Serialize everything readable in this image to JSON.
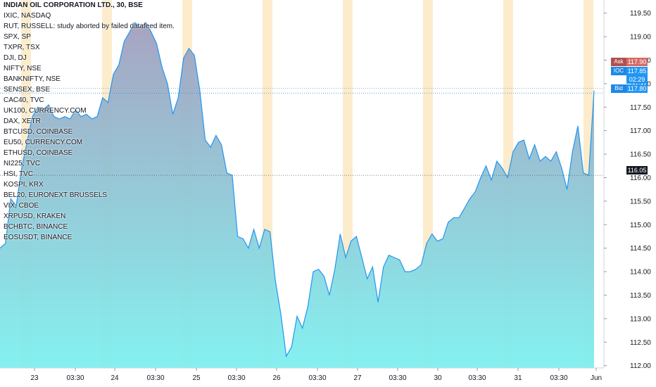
{
  "chart_data": {
    "type": "area",
    "title": "INDIAN OIL CORPORATION LTD., 30, BSE",
    "y_axis": {
      "ticks": [
        "119.50",
        "119.00",
        "118.50",
        "118.00",
        "117.50",
        "117.00",
        "116.50",
        "116.00",
        "115.50",
        "115.00",
        "114.50",
        "114.00",
        "113.50",
        "113.00",
        "112.50",
        "112.00"
      ],
      "range": [
        111.95,
        119.78
      ],
      "side": "right"
    },
    "x_axis": {
      "ticks": [
        "23",
        "03:30",
        "24",
        "03:30",
        "25",
        "03:30",
        "26",
        "03:30",
        "27",
        "03:30",
        "30",
        "03:30",
        "31",
        "03:30",
        "Jun"
      ]
    },
    "series": [
      {
        "values": [
          114.5,
          114.6,
          115.55,
          115.4,
          116.2,
          116.75,
          117.3,
          117.5,
          117.45,
          117.55,
          117.3,
          117.25,
          117.3,
          117.25,
          117.45,
          117.3,
          117.35,
          117.25,
          117.3,
          117.7,
          117.6,
          118.2,
          118.4,
          118.9,
          119.1,
          119.3,
          119.2,
          119.3,
          119.1,
          118.85,
          118.35,
          118.0,
          117.35,
          117.7,
          118.55,
          118.75,
          118.6,
          117.85,
          116.8,
          116.65,
          116.9,
          116.7,
          116.1,
          116.05,
          114.75,
          114.7,
          114.5,
          114.9,
          114.5,
          114.9,
          114.85,
          113.8,
          113.1,
          112.2,
          112.4,
          113.05,
          112.8,
          113.25,
          114.0,
          114.05,
          113.9,
          113.5,
          114.05,
          114.8,
          114.3,
          114.65,
          114.75,
          114.3,
          113.85,
          114.1,
          113.35,
          114.1,
          114.35,
          114.3,
          114.25,
          114.0,
          114.0,
          114.05,
          114.15,
          114.6,
          114.8,
          114.65,
          114.7,
          115.05,
          115.15,
          115.15,
          115.35,
          115.55,
          115.7,
          116.0,
          116.25,
          115.95,
          116.35,
          116.2,
          116.0,
          116.55,
          116.75,
          116.8,
          116.4,
          116.7,
          116.35,
          116.45,
          116.35,
          116.55,
          116.2,
          115.75,
          116.55,
          117.1,
          116.1,
          116.05,
          117.85
        ],
        "fill_top": "#a29fbe",
        "fill_bottom": "#7ef0ef",
        "line": "#2196f3"
      }
    ],
    "session_bands": [
      "23",
      "24",
      "25",
      "26",
      "27",
      "30",
      "31",
      "Jun"
    ],
    "band_color": "#fce9c2",
    "price_labels": [
      {
        "tag": "Ask",
        "value": "117.90",
        "tag_color": "#b0504c",
        "value_color": "#d46a66"
      },
      {
        "tag": "IOC",
        "value": "117.85",
        "tag_color": "#1e88e5",
        "value_color": "#2196f3"
      },
      {
        "tag": "",
        "value": "02:29",
        "tag_color": "#1e88e5",
        "value_color": "#2196f3"
      },
      {
        "tag": "Bid",
        "value": "117.80",
        "tag_color": "#1e88e5",
        "value_color": "#2196f3"
      },
      {
        "tag": "",
        "value": "116.05",
        "tag_color": "#131722",
        "value_color": "#131722"
      }
    ],
    "grid": false
  },
  "legend": {
    "title": "INDIAN OIL CORPORATION LTD., 30, BSE",
    "items": [
      "IXIC, NASDAQ",
      "RUT, RUSSELL: study aborted by failed datafeed item.",
      "SPX, SP",
      "TXPR, TSX",
      "DJI, DJ",
      "NIFTY, NSE",
      "BANKNIFTY, NSE",
      "SENSEX, BSE",
      "CAC40, TVC",
      "UK100, CURRENCY.COM",
      "DAX, XETR",
      "BTCUSD, COINBASE",
      "EU50, CURRENCY.COM",
      "ETHUSD, COINBASE",
      "NI225, TVC",
      "HSI, TVC",
      "KOSPI, KRX",
      "BEL20, EURONEXT BRUSSELS",
      "VIX, CBOE",
      "XRPUSD, KRAKEN",
      "BCHBTC, BINANCE",
      "EOSUSDT, BINANCE"
    ]
  }
}
